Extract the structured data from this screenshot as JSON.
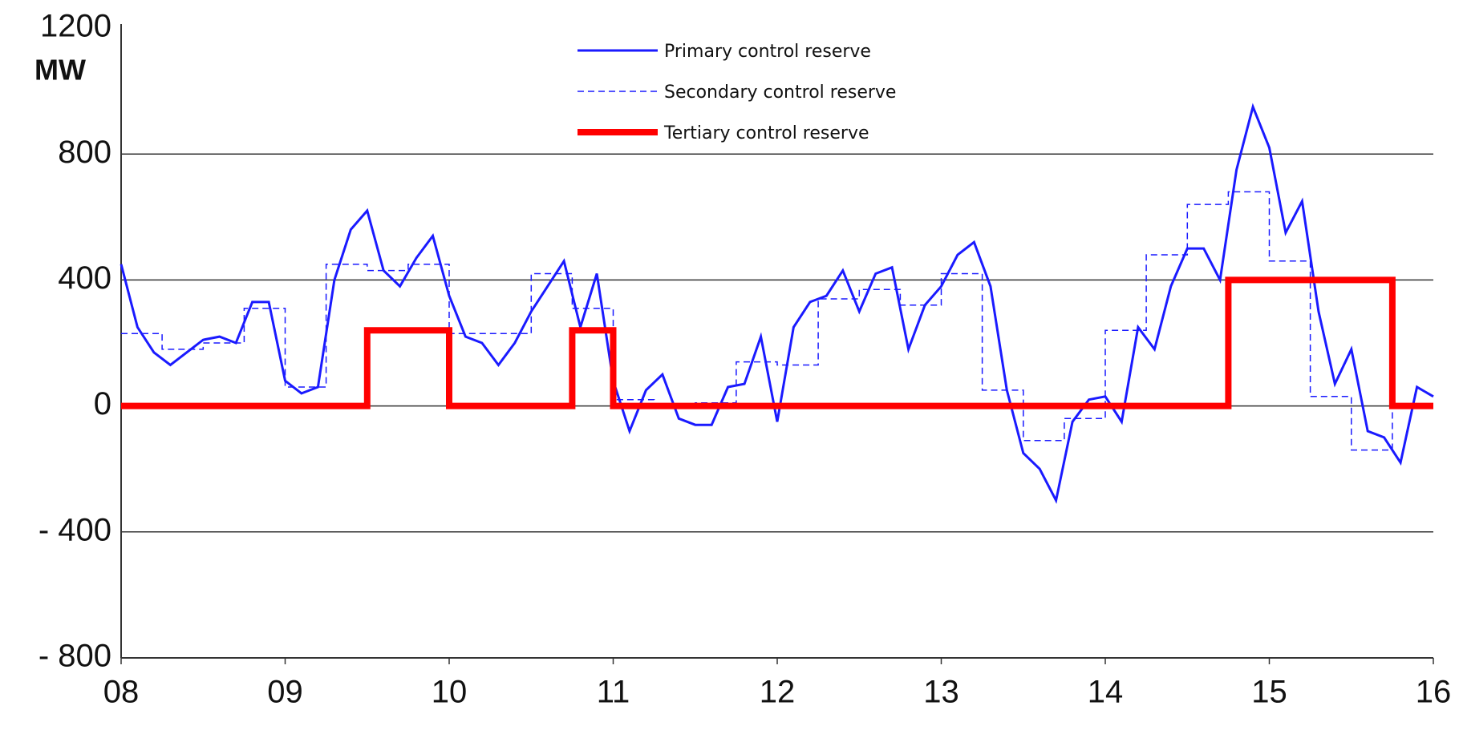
{
  "chart_data": {
    "type": "line",
    "y_label": "MW",
    "xlim": [
      8,
      16
    ],
    "ylim": [
      -800,
      1200
    ],
    "xticks": [
      {
        "value": 8,
        "label": "08"
      },
      {
        "value": 9,
        "label": "09"
      },
      10,
      11,
      12,
      13,
      14,
      15,
      16
    ],
    "yticks": [
      {
        "value": -800,
        "label": "- 800"
      },
      {
        "value": -400,
        "label": "- 400"
      },
      0,
      400,
      800,
      1200
    ],
    "grid": true,
    "series": [
      {
        "name": "Primary control reserve",
        "color": "#1a1aff",
        "style": "solid",
        "width": 3,
        "x": [
          8,
          8.1,
          8.2,
          8.3,
          8.4,
          8.5,
          8.6,
          8.7,
          8.8,
          8.9,
          9,
          9.1,
          9.2,
          9.3,
          9.4,
          9.5,
          9.6,
          9.7,
          9.8,
          9.9,
          10,
          10.1,
          10.2,
          10.3,
          10.4,
          10.5,
          10.6,
          10.7,
          10.8,
          10.9,
          11,
          11.1,
          11.2,
          11.3,
          11.4,
          11.5,
          11.6,
          11.7,
          11.8,
          11.9,
          12,
          12.1,
          12.2,
          12.3,
          12.4,
          12.5,
          12.6,
          12.7,
          12.8,
          12.9,
          13,
          13.1,
          13.2,
          13.3,
          13.4,
          13.5,
          13.6,
          13.7,
          13.8,
          13.9,
          14,
          14.1,
          14.2,
          14.3,
          14.4,
          14.5,
          14.6,
          14.7,
          14.8,
          14.9,
          15,
          15.1,
          15.2,
          15.3,
          15.4,
          15.5,
          15.6,
          15.7,
          15.8,
          15.9,
          16
        ],
        "values": [
          450,
          250,
          170,
          130,
          170,
          210,
          220,
          200,
          330,
          330,
          80,
          40,
          60,
          400,
          560,
          620,
          430,
          380,
          470,
          540,
          350,
          220,
          200,
          130,
          200,
          300,
          380,
          460,
          250,
          420,
          80,
          -80,
          50,
          100,
          -40,
          -60,
          -60,
          60,
          70,
          220,
          -50,
          250,
          330,
          350,
          430,
          300,
          420,
          440,
          180,
          320,
          380,
          480,
          520,
          380,
          50,
          -150,
          -200,
          -300,
          -50,
          20,
          30,
          -50,
          250,
          180,
          380,
          500,
          500,
          400,
          750,
          950,
          820,
          550,
          650,
          300,
          70,
          180,
          -80,
          -100,
          -180,
          60,
          30
        ]
      },
      {
        "name": "Secondary control reserve",
        "color": "#1a1aff",
        "style": "dashed",
        "width": 1.5,
        "x": [
          8,
          8.25,
          8.25,
          8.5,
          8.5,
          8.75,
          8.75,
          9,
          9,
          9.25,
          9.25,
          9.5,
          9.5,
          9.75,
          9.75,
          10,
          10,
          10.25,
          10.25,
          10.5,
          10.5,
          10.75,
          10.75,
          11,
          11,
          11.25,
          11.25,
          11.5,
          11.5,
          11.75,
          11.75,
          12,
          12,
          12.25,
          12.25,
          12.5,
          12.5,
          12.75,
          12.75,
          13,
          13,
          13.25,
          13.25,
          13.5,
          13.5,
          13.75,
          13.75,
          14,
          14,
          14.25,
          14.25,
          14.5,
          14.5,
          14.75,
          14.75,
          15,
          15,
          15.25,
          15.25,
          15.5,
          15.5,
          15.75,
          15.75,
          16
        ],
        "values": [
          230,
          230,
          180,
          180,
          200,
          200,
          310,
          310,
          60,
          60,
          450,
          450,
          430,
          430,
          450,
          450,
          230,
          230,
          230,
          230,
          420,
          420,
          310,
          310,
          20,
          20,
          0,
          0,
          10,
          10,
          140,
          140,
          130,
          130,
          340,
          340,
          370,
          370,
          320,
          320,
          420,
          420,
          50,
          50,
          -110,
          -110,
          -40,
          -40,
          240,
          240,
          480,
          480,
          640,
          640,
          680,
          680,
          460,
          460,
          30,
          30,
          -140,
          -140,
          0,
          0
        ]
      },
      {
        "name": "Tertiary control reserve",
        "color": "#ff0000",
        "style": "solid",
        "width": 8,
        "x": [
          8,
          9.5,
          9.5,
          10,
          10,
          10.75,
          10.75,
          11,
          11,
          14.75,
          14.75,
          15.75,
          15.75,
          16
        ],
        "values": [
          0,
          0,
          240,
          240,
          0,
          0,
          240,
          240,
          0,
          0,
          400,
          400,
          0,
          0
        ]
      }
    ]
  }
}
